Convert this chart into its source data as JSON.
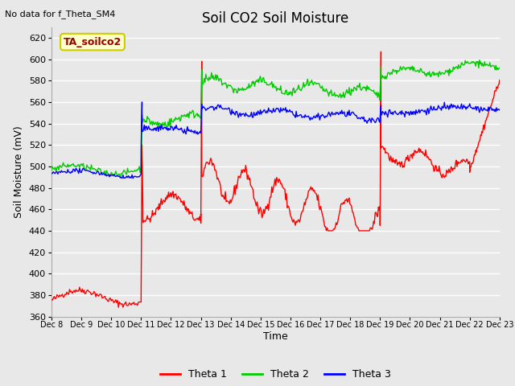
{
  "title": "Soil CO2 Soil Moisture",
  "no_data_text": "No data for f_Theta_SM4",
  "box_label": "TA_soilco2",
  "ylabel": "Soil Moisture (mV)",
  "xlabel": "Time",
  "ylim": [
    360,
    630
  ],
  "yticks": [
    360,
    380,
    400,
    420,
    440,
    460,
    480,
    500,
    520,
    540,
    560,
    580,
    600,
    620
  ],
  "xlim": [
    0,
    15
  ],
  "xtick_labels": [
    "Dec 8",
    "Dec 9",
    "Dec 10",
    "Dec 11",
    "Dec 12",
    "Dec 13",
    "Dec 14",
    "Dec 15",
    "Dec 16",
    "Dec 17",
    "Dec 18",
    "Dec 19",
    "Dec 20",
    "Dec 21",
    "Dec 22",
    "Dec 23"
  ],
  "line_colors": {
    "theta1": "#FF0000",
    "theta2": "#00CC00",
    "theta3": "#0000FF"
  },
  "legend_labels": [
    "Theta 1",
    "Theta 2",
    "Theta 3"
  ],
  "background_color": "#E8E8E8",
  "grid_color": "#FFFFFF",
  "title_fontsize": 12,
  "axis_fontsize": 9,
  "tick_fontsize": 8,
  "box_label_color": "#990000",
  "box_face_color": "#FFFFCC",
  "box_edge_color": "#CCCC00"
}
